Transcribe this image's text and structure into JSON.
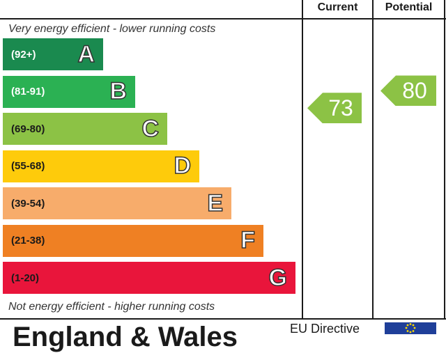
{
  "chart_data": {
    "type": "bar",
    "columns": {
      "current": "Current",
      "potential": "Potential"
    },
    "top_note": "Very energy efficient - lower running costs",
    "bottom_note": "Not energy efficient - higher running costs",
    "bands": [
      {
        "range": "(92+)",
        "letter": "A",
        "color": "#1a8a4f",
        "range_color": "#ffffff"
      },
      {
        "range": "(81-91)",
        "letter": "B",
        "color": "#2bb153",
        "range_color": "#ffffff"
      },
      {
        "range": "(69-80)",
        "letter": "C",
        "color": "#8cc245",
        "range_color": "#1a1a1a"
      },
      {
        "range": "(55-68)",
        "letter": "D",
        "color": "#fecb0b",
        "range_color": "#1a1a1a"
      },
      {
        "range": "(39-54)",
        "letter": "E",
        "color": "#f7ac6b",
        "range_color": "#1a1a1a"
      },
      {
        "range": "(21-38)",
        "letter": "F",
        "color": "#ef8023",
        "range_color": "#1a1a1a"
      },
      {
        "range": "(1-20)",
        "letter": "G",
        "color": "#e9153b",
        "range_color": "#1a1a1a"
      }
    ],
    "current": {
      "value": 73,
      "band": "C",
      "label": "73",
      "color": "#8cc245"
    },
    "potential": {
      "value": 80,
      "band": "C",
      "label": "80",
      "color": "#8cc245"
    }
  },
  "footer": {
    "title": "England & Wales",
    "directive": "EU Directive"
  }
}
